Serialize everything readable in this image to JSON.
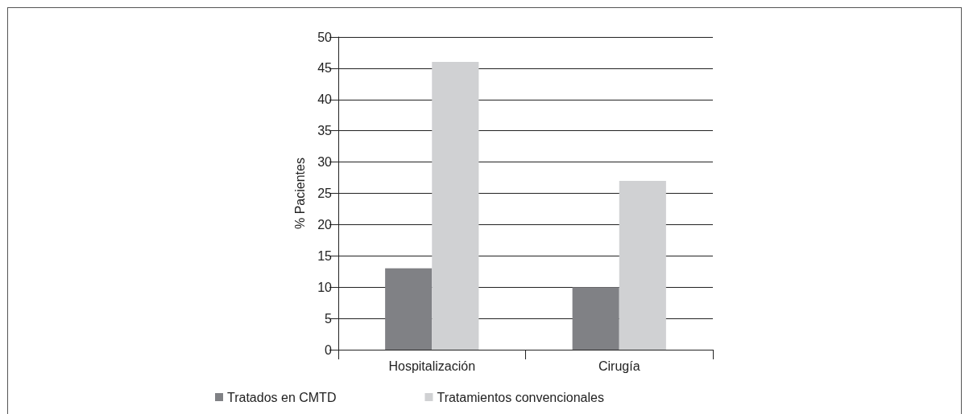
{
  "chart_data": {
    "type": "bar",
    "ylabel": "% Pacientes",
    "categories": [
      "Hospitalización",
      "Cirugía"
    ],
    "series": [
      {
        "name": "Tratados en CMTD",
        "color": "#808185",
        "values": [
          13,
          10
        ]
      },
      {
        "name": "Tratamientos convencionales",
        "color": "#d0d1d3",
        "values": [
          46,
          27
        ]
      }
    ],
    "ylim": [
      0,
      50
    ],
    "yticks": [
      0,
      5,
      10,
      15,
      20,
      25,
      30,
      35,
      40,
      45,
      50
    ],
    "grid": "y",
    "legend": "bottom"
  }
}
